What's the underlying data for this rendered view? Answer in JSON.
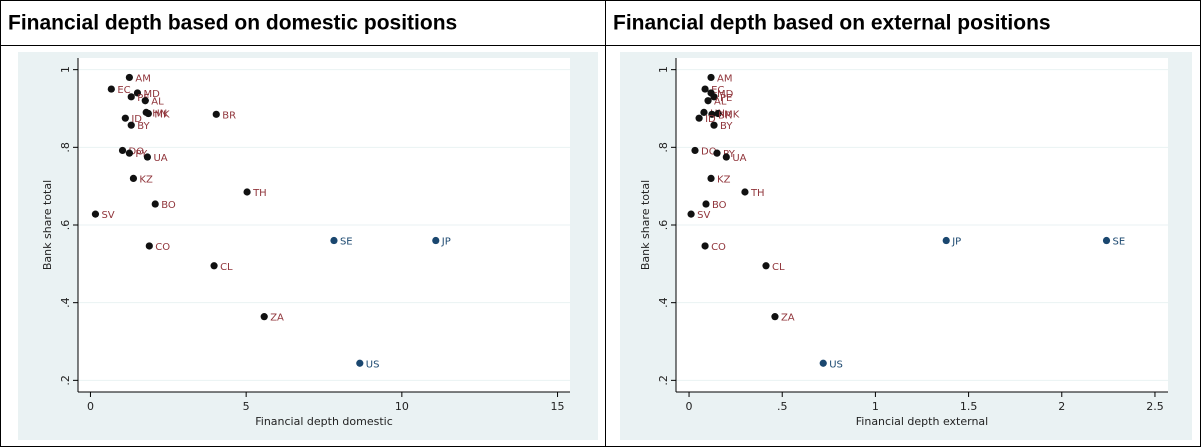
{
  "chart_data": [
    {
      "type": "scatter",
      "title": "Financial depth based on domestic positions",
      "x_label": "Financial depth domestic",
      "y_label": "Bank share total",
      "labels": [
        "AM",
        "EC",
        "MD",
        "PE",
        "AL",
        "HN",
        "MK",
        "BR",
        "ID",
        "BY",
        "DO",
        "PY",
        "UA",
        "KZ",
        "TH",
        "BO",
        "SV",
        "SE",
        "JP",
        "CO",
        "CL",
        "ZA",
        "US"
      ],
      "x": [
        1.25,
        0.67,
        1.51,
        1.31,
        1.76,
        1.79,
        1.86,
        4.04,
        1.12,
        1.31,
        1.03,
        1.25,
        1.83,
        1.38,
        5.03,
        2.08,
        0.16,
        7.82,
        11.09,
        1.89,
        3.97,
        5.58,
        8.65
      ],
      "y": [
        0.98,
        0.95,
        0.94,
        0.93,
        0.92,
        0.89,
        0.887,
        0.885,
        0.875,
        0.857,
        0.792,
        0.785,
        0.775,
        0.72,
        0.685,
        0.654,
        0.628,
        0.56,
        0.56,
        0.546,
        0.495,
        0.364,
        0.244
      ],
      "colors": [
        "#111",
        "#111",
        "#111",
        "#111",
        "#111",
        "#111",
        "#111",
        "#111",
        "#111",
        "#111",
        "#111",
        "#111",
        "#111",
        "#111",
        "#111",
        "#111",
        "#111",
        "#1a476f",
        "#1a476f",
        "#111",
        "#111",
        "#111",
        "#1a476f"
      ],
      "label_colors": [
        "#90353b",
        "#90353b",
        "#90353b",
        "#90353b",
        "#90353b",
        "#90353b",
        "#90353b",
        "#90353b",
        "#90353b",
        "#90353b",
        "#90353b",
        "#90353b",
        "#90353b",
        "#90353b",
        "#90353b",
        "#90353b",
        "#90353b",
        "#1a476f",
        "#1a476f",
        "#90353b",
        "#90353b",
        "#90353b",
        "#1a476f"
      ],
      "xlim": [
        -0.4,
        15.4
      ],
      "ylim": [
        0.17,
        1.03
      ],
      "xticks": [
        0,
        5,
        10,
        15
      ],
      "yticks": [
        {
          "value": 0.2,
          "label": ".2"
        },
        {
          "value": 0.4,
          "label": ".4"
        },
        {
          "value": 0.6,
          "label": ".6"
        },
        {
          "value": 0.8,
          "label": ".8"
        },
        1
      ],
      "grid": true
    },
    {
      "type": "scatter",
      "title": "Financial depth based on external positions",
      "x_label": "Financial depth external",
      "y_label": "Bank share total",
      "labels": [
        "AM",
        "EC",
        "MD",
        "PE",
        "AL",
        "HN",
        "MK",
        "BR",
        "ID",
        "BY",
        "DO",
        "PY",
        "UA",
        "KZ",
        "TH",
        "BO",
        "SV",
        "SE",
        "JP",
        "CO",
        "CL",
        "ZA",
        "US"
      ],
      "x": [
        0.118,
        0.086,
        0.118,
        0.134,
        0.102,
        0.08,
        0.156,
        0.123,
        0.054,
        0.134,
        0.032,
        0.15,
        0.2,
        0.118,
        0.3,
        0.091,
        0.011,
        2.24,
        1.38,
        0.086,
        0.413,
        0.461,
        0.72
      ],
      "y": [
        0.98,
        0.95,
        0.94,
        0.93,
        0.92,
        0.89,
        0.887,
        0.885,
        0.875,
        0.857,
        0.792,
        0.785,
        0.775,
        0.72,
        0.685,
        0.654,
        0.628,
        0.56,
        0.56,
        0.546,
        0.495,
        0.364,
        0.244
      ],
      "colors": [
        "#111",
        "#111",
        "#111",
        "#111",
        "#111",
        "#111",
        "#111",
        "#111",
        "#111",
        "#111",
        "#111",
        "#111",
        "#111",
        "#111",
        "#111",
        "#111",
        "#111",
        "#1a476f",
        "#1a476f",
        "#111",
        "#111",
        "#111",
        "#1a476f"
      ],
      "label_colors": [
        "#90353b",
        "#90353b",
        "#90353b",
        "#90353b",
        "#90353b",
        "#90353b",
        "#90353b",
        "#90353b",
        "#90353b",
        "#90353b",
        "#90353b",
        "#90353b",
        "#90353b",
        "#90353b",
        "#90353b",
        "#90353b",
        "#90353b",
        "#1a476f",
        "#1a476f",
        "#90353b",
        "#90353b",
        "#90353b",
        "#1a476f"
      ],
      "xlim": [
        -0.07,
        2.57
      ],
      "ylim": [
        0.17,
        1.03
      ],
      "xticks": [
        0,
        {
          "value": 0.5,
          "label": ".5"
        },
        1,
        1.5,
        2,
        2.5
      ],
      "yticks": [
        {
          "value": 0.2,
          "label": ".2"
        },
        {
          "value": 0.4,
          "label": ".4"
        },
        {
          "value": 0.6,
          "label": ".6"
        },
        {
          "value": 0.8,
          "label": ".8"
        },
        1
      ],
      "grid": true
    }
  ]
}
